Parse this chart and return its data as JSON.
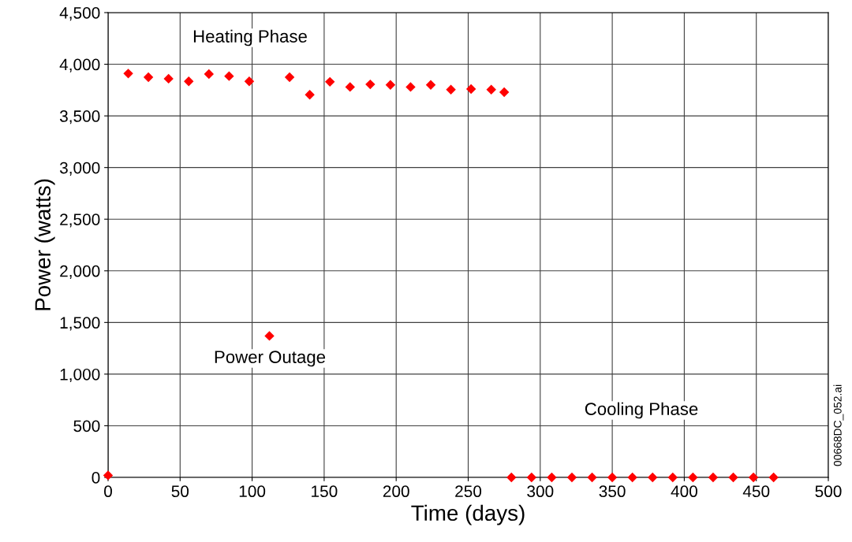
{
  "chart_data": {
    "type": "scatter",
    "xlabel": "Time (days)",
    "ylabel": "Power (watts)",
    "x": [
      0,
      14,
      28,
      42,
      56,
      70,
      84,
      98,
      112,
      126,
      140,
      154,
      168,
      182,
      196,
      210,
      224,
      238,
      252,
      266,
      275,
      280,
      294,
      308,
      322,
      336,
      350,
      364,
      378,
      392,
      406,
      420,
      434,
      448,
      462
    ],
    "series": [
      {
        "color": "#ff0000",
        "values": [
          20,
          3910,
          3875,
          3860,
          3835,
          3905,
          3885,
          3835,
          1370,
          3875,
          3705,
          3830,
          3780,
          3805,
          3800,
          3780,
          3800,
          3755,
          3760,
          3755,
          3730,
          0,
          0,
          0,
          0,
          0,
          0,
          0,
          0,
          0,
          0,
          0,
          0,
          0,
          0
        ]
      }
    ],
    "marker": "diamond",
    "grid": true,
    "legend": false,
    "xlim": [
      0,
      500
    ],
    "xticks": [
      0,
      50,
      100,
      150,
      200,
      250,
      300,
      350,
      400,
      450,
      500
    ],
    "ylim": [
      0,
      4500
    ],
    "yticks": [
      {
        "value": 0,
        "label": "0"
      },
      {
        "value": 500,
        "label": "500"
      },
      {
        "value": 1000,
        "label": "1,000"
      },
      {
        "value": 1500,
        "label": "1,500"
      },
      {
        "value": 2000,
        "label": "2,000"
      },
      {
        "value": 2500,
        "label": "2,500"
      },
      {
        "value": 3000,
        "label": "3,000"
      },
      {
        "value": 3500,
        "label": "3,500"
      },
      {
        "value": 4000,
        "label": "4,000"
      },
      {
        "value": 4500,
        "label": "4,500"
      }
    ],
    "annotations": [
      "Heating Phase",
      "Power Outage",
      "Cooling Phase",
      "00668DC_052.ai"
    ]
  }
}
